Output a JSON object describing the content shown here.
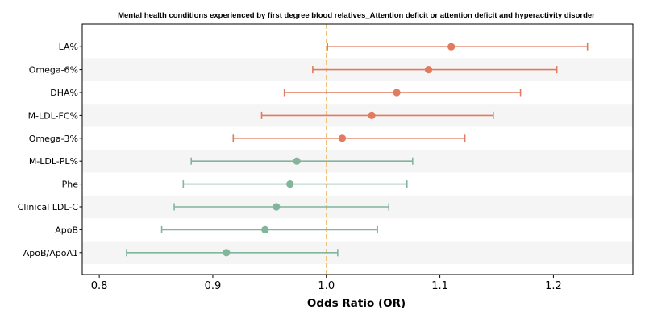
{
  "chart_data": {
    "type": "forest",
    "title": "Mental health conditions experienced by first degree blood relatives_Attention deficit or attention deficit and hyperactivity disorder",
    "xlabel": "Odds Ratio (OR)",
    "ylabel": "",
    "xlim": [
      0.785,
      1.27
    ],
    "xticks": [
      "0.8",
      "0.9",
      "1.0",
      "1.1",
      "1.2"
    ],
    "reference_line": 1.0,
    "grid": false,
    "colors": {
      "above": "#e07b5f",
      "below": "#82b59c",
      "reference": "#f0c27a",
      "band": "#f5f5f5"
    },
    "points": [
      {
        "label": "LA%",
        "or": 1.11,
        "lo": 1.001,
        "hi": 1.23
      },
      {
        "label": "Omega-6%",
        "or": 1.09,
        "lo": 0.988,
        "hi": 1.203
      },
      {
        "label": "DHA%",
        "or": 1.062,
        "lo": 0.963,
        "hi": 1.171
      },
      {
        "label": "M-LDL-FC%",
        "or": 1.04,
        "lo": 0.943,
        "hi": 1.147
      },
      {
        "label": "Omega-3%",
        "or": 1.014,
        "lo": 0.918,
        "hi": 1.122
      },
      {
        "label": "M-LDL-PL%",
        "or": 0.974,
        "lo": 0.881,
        "hi": 1.076
      },
      {
        "label": "Phe",
        "or": 0.968,
        "lo": 0.874,
        "hi": 1.071
      },
      {
        "label": "Clinical LDL-C",
        "or": 0.956,
        "lo": 0.866,
        "hi": 1.055
      },
      {
        "label": "ApoB",
        "or": 0.946,
        "lo": 0.855,
        "hi": 1.045
      },
      {
        "label": "ApoB/ApoA1",
        "or": 0.912,
        "lo": 0.824,
        "hi": 1.01
      }
    ]
  }
}
